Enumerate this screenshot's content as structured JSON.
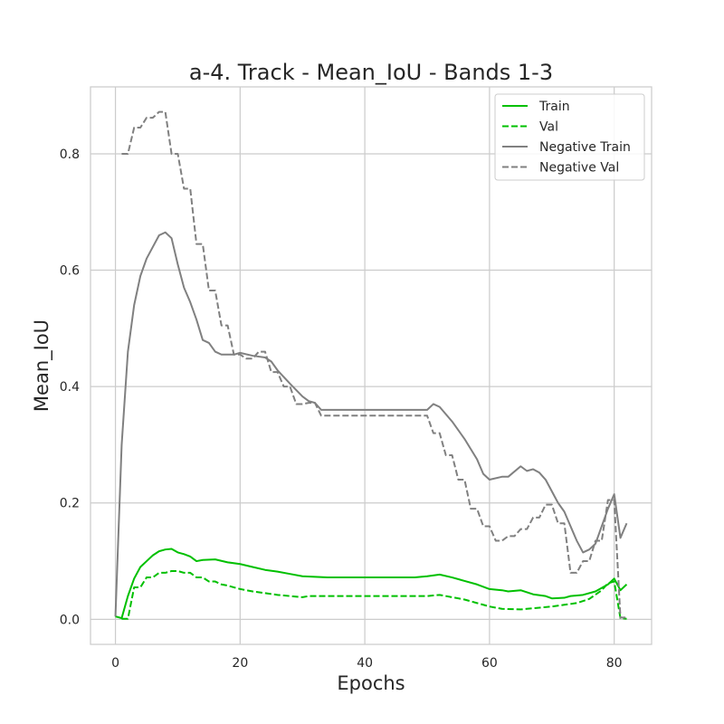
{
  "chart_data": {
    "type": "line",
    "title": "a-4. Track - Mean_IoU - Bands 1-3",
    "xlabel": "Epochs",
    "ylabel": "Mean_IoU",
    "xlim": [
      -4,
      86
    ],
    "ylim": [
      -0.043,
      0.915
    ],
    "xticks": [
      "0",
      "20",
      "40",
      "60",
      "80"
    ],
    "yticks": [
      "0.0",
      "0.2",
      "0.4",
      "0.6",
      "0.8"
    ],
    "grid": true,
    "legend_position": "top-right",
    "series": [
      {
        "name": "Train",
        "color": "#00c000",
        "dash": "solid",
        "points": [
          [
            0,
            0.005
          ],
          [
            1,
            0.002
          ],
          [
            2,
            0.04
          ],
          [
            3,
            0.07
          ],
          [
            4,
            0.09
          ],
          [
            5,
            0.1
          ],
          [
            6,
            0.11
          ],
          [
            7,
            0.117
          ],
          [
            8,
            0.12
          ],
          [
            9,
            0.121
          ],
          [
            10,
            0.115
          ],
          [
            11,
            0.112
          ],
          [
            12,
            0.108
          ],
          [
            13,
            0.1
          ],
          [
            14,
            0.102
          ],
          [
            16,
            0.103
          ],
          [
            18,
            0.098
          ],
          [
            20,
            0.095
          ],
          [
            22,
            0.09
          ],
          [
            24,
            0.085
          ],
          [
            26,
            0.082
          ],
          [
            28,
            0.078
          ],
          [
            30,
            0.074
          ],
          [
            32,
            0.073
          ],
          [
            34,
            0.072
          ],
          [
            36,
            0.072
          ],
          [
            40,
            0.072
          ],
          [
            44,
            0.072
          ],
          [
            48,
            0.072
          ],
          [
            50,
            0.074
          ],
          [
            52,
            0.077
          ],
          [
            54,
            0.072
          ],
          [
            56,
            0.066
          ],
          [
            58,
            0.06
          ],
          [
            60,
            0.052
          ],
          [
            62,
            0.05
          ],
          [
            63,
            0.048
          ],
          [
            65,
            0.05
          ],
          [
            67,
            0.043
          ],
          [
            69,
            0.04
          ],
          [
            70,
            0.036
          ],
          [
            72,
            0.037
          ],
          [
            73,
            0.04
          ],
          [
            75,
            0.042
          ],
          [
            77,
            0.048
          ],
          [
            79,
            0.06
          ],
          [
            80,
            0.07
          ],
          [
            81,
            0.05
          ],
          [
            82,
            0.06
          ]
        ]
      },
      {
        "name": "Val",
        "color": "#00c000",
        "dash": "dashed",
        "points": [
          [
            1,
            0.001
          ],
          [
            2,
            0.001
          ],
          [
            3,
            0.055
          ],
          [
            4,
            0.055
          ],
          [
            5,
            0.072
          ],
          [
            6,
            0.072
          ],
          [
            7,
            0.08
          ],
          [
            8,
            0.08
          ],
          [
            9,
            0.083
          ],
          [
            10,
            0.083
          ],
          [
            11,
            0.08
          ],
          [
            12,
            0.08
          ],
          [
            13,
            0.072
          ],
          [
            14,
            0.072
          ],
          [
            15,
            0.065
          ],
          [
            16,
            0.065
          ],
          [
            17,
            0.06
          ],
          [
            18,
            0.058
          ],
          [
            20,
            0.052
          ],
          [
            22,
            0.048
          ],
          [
            24,
            0.045
          ],
          [
            26,
            0.042
          ],
          [
            28,
            0.04
          ],
          [
            30,
            0.038
          ],
          [
            31,
            0.04
          ],
          [
            33,
            0.04
          ],
          [
            36,
            0.04
          ],
          [
            40,
            0.04
          ],
          [
            45,
            0.04
          ],
          [
            50,
            0.04
          ],
          [
            52,
            0.042
          ],
          [
            54,
            0.038
          ],
          [
            56,
            0.034
          ],
          [
            58,
            0.028
          ],
          [
            60,
            0.022
          ],
          [
            62,
            0.018
          ],
          [
            65,
            0.017
          ],
          [
            68,
            0.02
          ],
          [
            70,
            0.022
          ],
          [
            72,
            0.025
          ],
          [
            74,
            0.028
          ],
          [
            76,
            0.035
          ],
          [
            78,
            0.05
          ],
          [
            79,
            0.062
          ],
          [
            80,
            0.065
          ],
          [
            81,
            0.002
          ],
          [
            82,
            0.001
          ]
        ]
      },
      {
        "name": "Negative Train",
        "color": "#808080",
        "dash": "solid",
        "points": [
          [
            0,
            0.005
          ],
          [
            1,
            0.3
          ],
          [
            2,
            0.46
          ],
          [
            3,
            0.54
          ],
          [
            4,
            0.59
          ],
          [
            5,
            0.62
          ],
          [
            6,
            0.64
          ],
          [
            7,
            0.66
          ],
          [
            8,
            0.665
          ],
          [
            9,
            0.655
          ],
          [
            10,
            0.61
          ],
          [
            11,
            0.57
          ],
          [
            12,
            0.545
          ],
          [
            13,
            0.515
          ],
          [
            14,
            0.48
          ],
          [
            15,
            0.475
          ],
          [
            16,
            0.46
          ],
          [
            17,
            0.455
          ],
          [
            19,
            0.455
          ],
          [
            20,
            0.458
          ],
          [
            22,
            0.453
          ],
          [
            24,
            0.45
          ],
          [
            25,
            0.443
          ],
          [
            26,
            0.428
          ],
          [
            28,
            0.405
          ],
          [
            30,
            0.383
          ],
          [
            31,
            0.375
          ],
          [
            32,
            0.372
          ],
          [
            33,
            0.36
          ],
          [
            36,
            0.36
          ],
          [
            40,
            0.36
          ],
          [
            45,
            0.36
          ],
          [
            50,
            0.36
          ],
          [
            51,
            0.37
          ],
          [
            52,
            0.365
          ],
          [
            54,
            0.34
          ],
          [
            56,
            0.31
          ],
          [
            58,
            0.275
          ],
          [
            59,
            0.25
          ],
          [
            60,
            0.24
          ],
          [
            62,
            0.245
          ],
          [
            63,
            0.245
          ],
          [
            65,
            0.263
          ],
          [
            66,
            0.255
          ],
          [
            67,
            0.258
          ],
          [
            68,
            0.252
          ],
          [
            69,
            0.24
          ],
          [
            71,
            0.2
          ],
          [
            72,
            0.185
          ],
          [
            73,
            0.16
          ],
          [
            74,
            0.135
          ],
          [
            75,
            0.115
          ],
          [
            76,
            0.12
          ],
          [
            77,
            0.13
          ],
          [
            78,
            0.16
          ],
          [
            79,
            0.19
          ],
          [
            80,
            0.215
          ],
          [
            81,
            0.14
          ],
          [
            82,
            0.165
          ]
        ]
      },
      {
        "name": "Negative Val",
        "color": "#808080",
        "dash": "dashed",
        "points": [
          [
            1,
            0.8
          ],
          [
            2,
            0.8
          ],
          [
            3,
            0.845
          ],
          [
            4,
            0.845
          ],
          [
            5,
            0.862
          ],
          [
            6,
            0.862
          ],
          [
            7,
            0.872
          ],
          [
            8,
            0.872
          ],
          [
            9,
            0.8
          ],
          [
            10,
            0.8
          ],
          [
            11,
            0.74
          ],
          [
            12,
            0.74
          ],
          [
            13,
            0.645
          ],
          [
            14,
            0.645
          ],
          [
            15,
            0.565
          ],
          [
            16,
            0.565
          ],
          [
            17,
            0.505
          ],
          [
            18,
            0.505
          ],
          [
            19,
            0.455
          ],
          [
            20,
            0.455
          ],
          [
            21,
            0.448
          ],
          [
            22,
            0.448
          ],
          [
            23,
            0.46
          ],
          [
            24,
            0.46
          ],
          [
            25,
            0.425
          ],
          [
            26,
            0.425
          ],
          [
            27,
            0.4
          ],
          [
            28,
            0.4
          ],
          [
            29,
            0.37
          ],
          [
            30,
            0.37
          ],
          [
            31,
            0.372
          ],
          [
            32,
            0.372
          ],
          [
            33,
            0.35
          ],
          [
            36,
            0.35
          ],
          [
            40,
            0.35
          ],
          [
            45,
            0.35
          ],
          [
            50,
            0.35
          ],
          [
            51,
            0.32
          ],
          [
            52,
            0.32
          ],
          [
            53,
            0.282
          ],
          [
            54,
            0.282
          ],
          [
            55,
            0.24
          ],
          [
            56,
            0.24
          ],
          [
            57,
            0.19
          ],
          [
            58,
            0.19
          ],
          [
            59,
            0.16
          ],
          [
            60,
            0.16
          ],
          [
            61,
            0.135
          ],
          [
            62,
            0.135
          ],
          [
            63,
            0.143
          ],
          [
            64,
            0.143
          ],
          [
            65,
            0.155
          ],
          [
            66,
            0.155
          ],
          [
            67,
            0.175
          ],
          [
            68,
            0.175
          ],
          [
            69,
            0.197
          ],
          [
            70,
            0.197
          ],
          [
            71,
            0.165
          ],
          [
            72,
            0.165
          ],
          [
            73,
            0.08
          ],
          [
            74,
            0.08
          ],
          [
            75,
            0.1
          ],
          [
            76,
            0.1
          ],
          [
            77,
            0.135
          ],
          [
            78,
            0.135
          ],
          [
            79,
            0.205
          ],
          [
            80,
            0.205
          ],
          [
            81,
            0.003
          ],
          [
            82,
            0.003
          ]
        ]
      }
    ]
  }
}
